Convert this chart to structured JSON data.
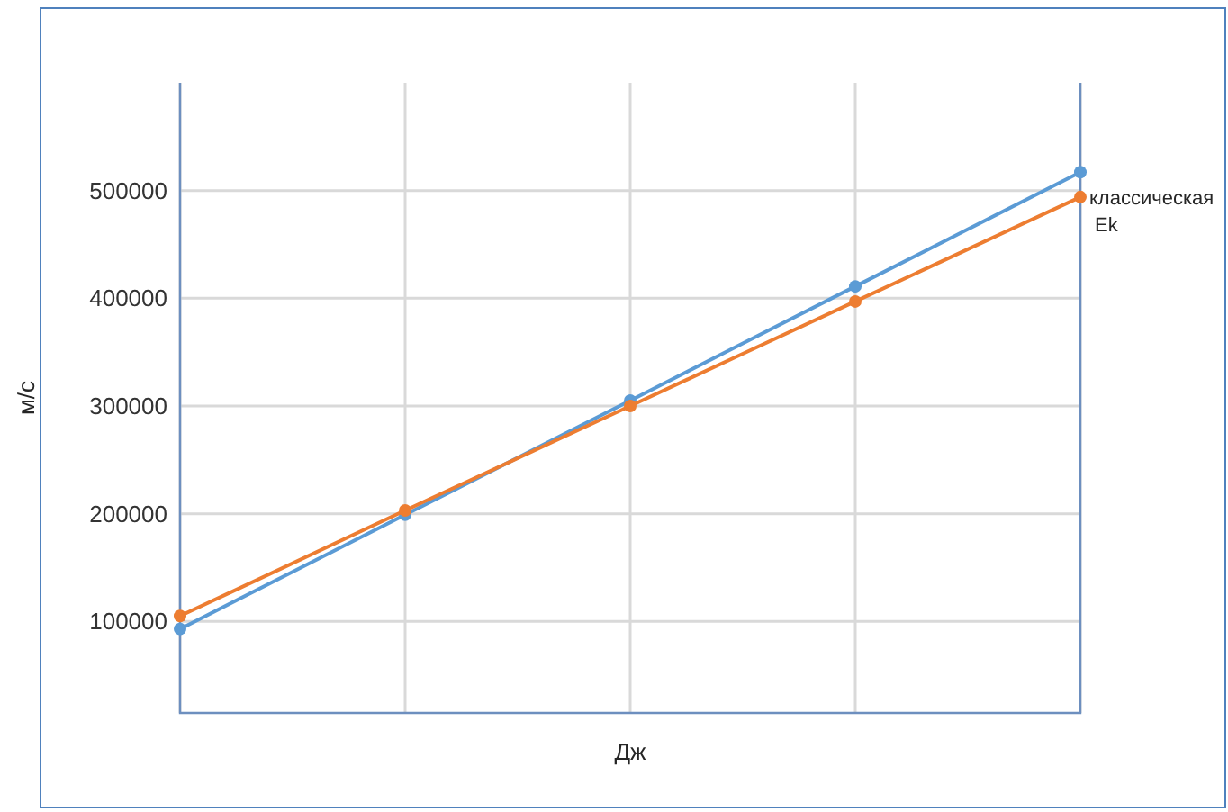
{
  "chart_data": {
    "type": "line",
    "xlabel": "Дж",
    "ylabel": "м/с",
    "categories": [
      null,
      null,
      null,
      null,
      null
    ],
    "series": [
      {
        "color": "#5b9bd5",
        "values": [
          93000,
          199000,
          305000,
          411000,
          517000
        ]
      },
      {
        "name": "классическая Ek",
        "color": "#ed7d31",
        "values": [
          105000,
          203000,
          300000,
          397000,
          494000
        ]
      }
    ],
    "ylim": [
      15000,
      600000
    ],
    "yticks": [
      100000,
      200000,
      300000,
      400000,
      500000
    ],
    "grid": true,
    "marker": "circle",
    "line_style": "solid"
  }
}
